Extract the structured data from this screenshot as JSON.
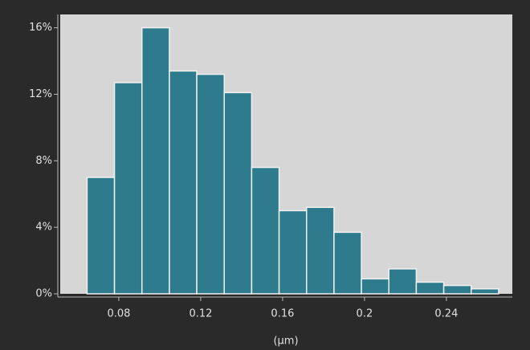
{
  "chart_data": {
    "type": "histogram",
    "x_label": "(µm)",
    "bins": [
      0.0645,
      0.0779,
      0.0913,
      0.1047,
      0.1181,
      0.1315,
      0.1449,
      0.1583,
      0.1717,
      0.1851,
      0.1985,
      0.2119,
      0.2253,
      0.2387,
      0.2521,
      0.2655
    ],
    "values": [
      7.0,
      12.7,
      16.0,
      13.4,
      13.2,
      12.1,
      7.6,
      5.0,
      5.2,
      3.7,
      0.9,
      1.5,
      0.7,
      0.5,
      0.3
    ],
    "color": "#2e7b8e",
    "xlim": [
      0.0514,
      0.2722
    ],
    "xticks": [
      0.08,
      0.12,
      0.16,
      0.2,
      0.24
    ],
    "ylim": [
      0,
      16.8
    ],
    "yticks": [
      {
        "value": 0,
        "label": "0%"
      },
      {
        "value": 4,
        "label": "4%"
      },
      {
        "value": 8,
        "label": "8%"
      },
      {
        "value": 12,
        "label": "12%"
      },
      {
        "value": 16,
        "label": "16%"
      }
    ]
  }
}
